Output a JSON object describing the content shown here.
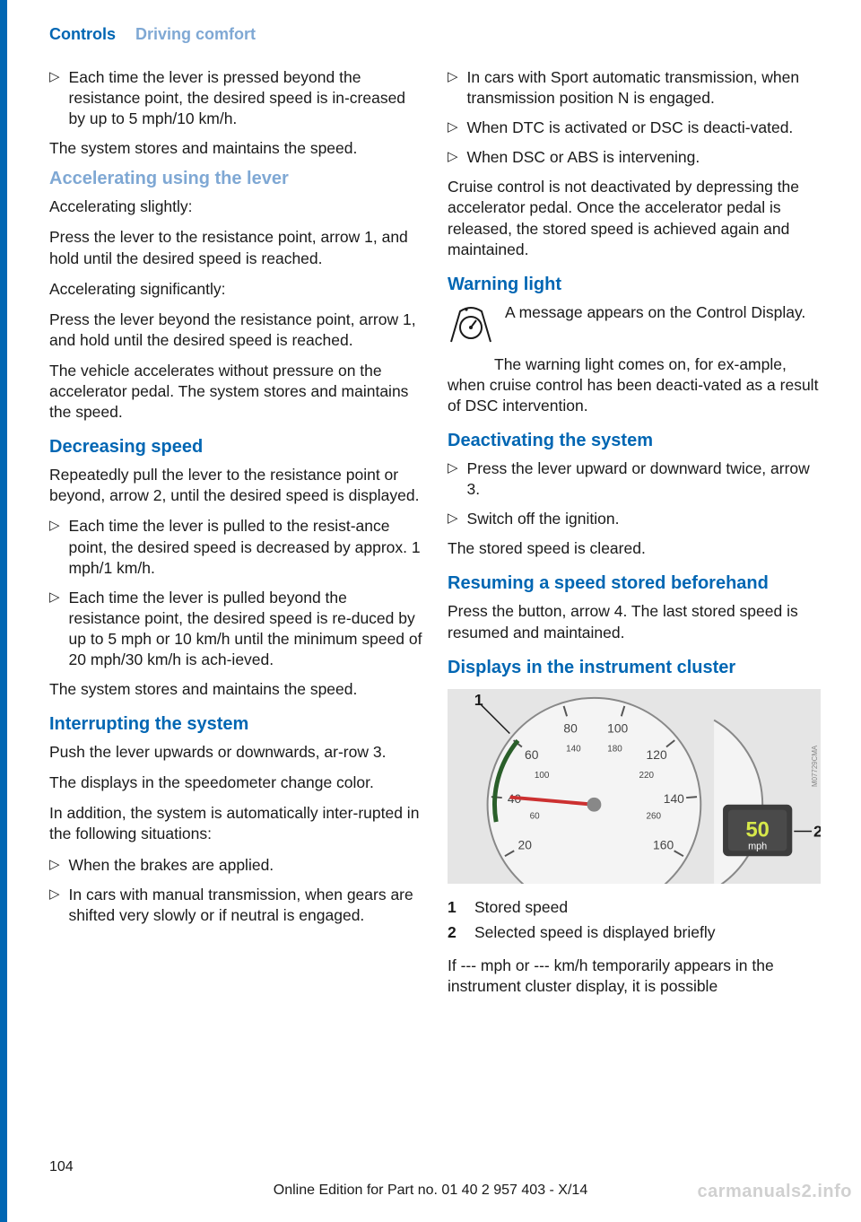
{
  "header": {
    "tab1": "Controls",
    "tab2": "Driving comfort"
  },
  "colL": {
    "b1": "Each time the lever is pressed beyond the resistance point, the desired speed is in‐creased by up to 5 mph/10 km/h.",
    "p1": "The system stores and maintains the speed.",
    "h1": "Accelerating using the lever",
    "p2": "Accelerating slightly:",
    "p3": "Press the lever to the resistance point, arrow 1, and hold until the desired speed is reached.",
    "p4": "Accelerating significantly:",
    "p5": "Press the lever beyond the resistance point, arrow 1, and hold until the desired speed is reached.",
    "p6": "The vehicle accelerates without pressure on the accelerator pedal. The system stores and maintains the speed.",
    "h2": "Decreasing speed",
    "p7": "Repeatedly pull the lever to the resistance point or beyond, arrow 2, until the desired speed is displayed.",
    "b2": "Each time the lever is pulled to the resist‐ance point, the desired speed is decreased by approx. 1 mph/1 km/h.",
    "b3": "Each time the lever is pulled beyond the resistance point, the desired speed is re‐duced by up to 5 mph or 10 km/h until the minimum speed of 20 mph/30 km/h is ach‐ieved.",
    "p8": "The system stores and maintains the speed.",
    "h3": "Interrupting the system",
    "p9": "Push the lever upwards or downwards, ar‐row 3.",
    "p10": "The displays in the speedometer change color.",
    "p11": "In addition, the system is automatically inter‐rupted in the following situations:",
    "b4": "When the brakes are applied.",
    "b5": "In cars with manual transmission, when gears are shifted very slowly or if neutral is engaged."
  },
  "colR": {
    "b1": "In cars with Sport automatic transmission, when transmission position N is engaged.",
    "b2": "When DTC is activated or DSC is deacti‐vated.",
    "b3": "When DSC or ABS is intervening.",
    "p1": "Cruise control is not deactivated by depressing the accelerator pedal. Once the accelerator pedal is released, the stored speed is achieved again and maintained.",
    "h1": "Warning light",
    "iconText": "A message appears on the Control Display.",
    "p2": "The warning light comes on, for ex‐ample, when cruise control has been deacti‐vated as a result of DSC intervention.",
    "h2": "Deactivating the system",
    "b4": "Press the lever upward or downward twice, arrow 3.",
    "b5": "Switch off the ignition.",
    "p3": "The stored speed is cleared.",
    "h3": "Resuming a speed stored beforehand",
    "p4": "Press the button, arrow 4. The last stored speed is resumed and maintained.",
    "h4": "Displays in the instrument cluster",
    "legend1": {
      "num": "1",
      "txt": "Stored speed"
    },
    "legend2": {
      "num": "2",
      "txt": "Selected speed is displayed briefly"
    },
    "p5": "If --- mph or --- km/h temporarily appears in the instrument cluster display, it is possible"
  },
  "figure": {
    "bg": "#e5e5e5",
    "dial_fill": "#f4f4f4",
    "dial_stroke": "#888888",
    "tick_color": "#555555",
    "num_color": "#444444",
    "needle_color": "#cc3030",
    "arc_color": "#2a5f2a",
    "label_bg": "#3c3c3c",
    "label_face": "#4a4a4a",
    "label_num": "#d6e84a",
    "label_text": "#ffffff",
    "callout_color": "#1a1a1a",
    "ticks_outer": [
      "20",
      "40",
      "60",
      "80",
      "100",
      "120",
      "140",
      "160"
    ],
    "ticks_inner": [
      "60",
      "100",
      "140",
      "180",
      "220",
      "260"
    ],
    "display_num": "50",
    "display_unit": "mph",
    "callout1": "1",
    "callout2": "2",
    "watermark": "M07729CMA"
  },
  "pageNum": "104",
  "footer": "Online Edition for Part no. 01 40 2 957 403 - X/14",
  "watermark": "carmanuals2.info"
}
